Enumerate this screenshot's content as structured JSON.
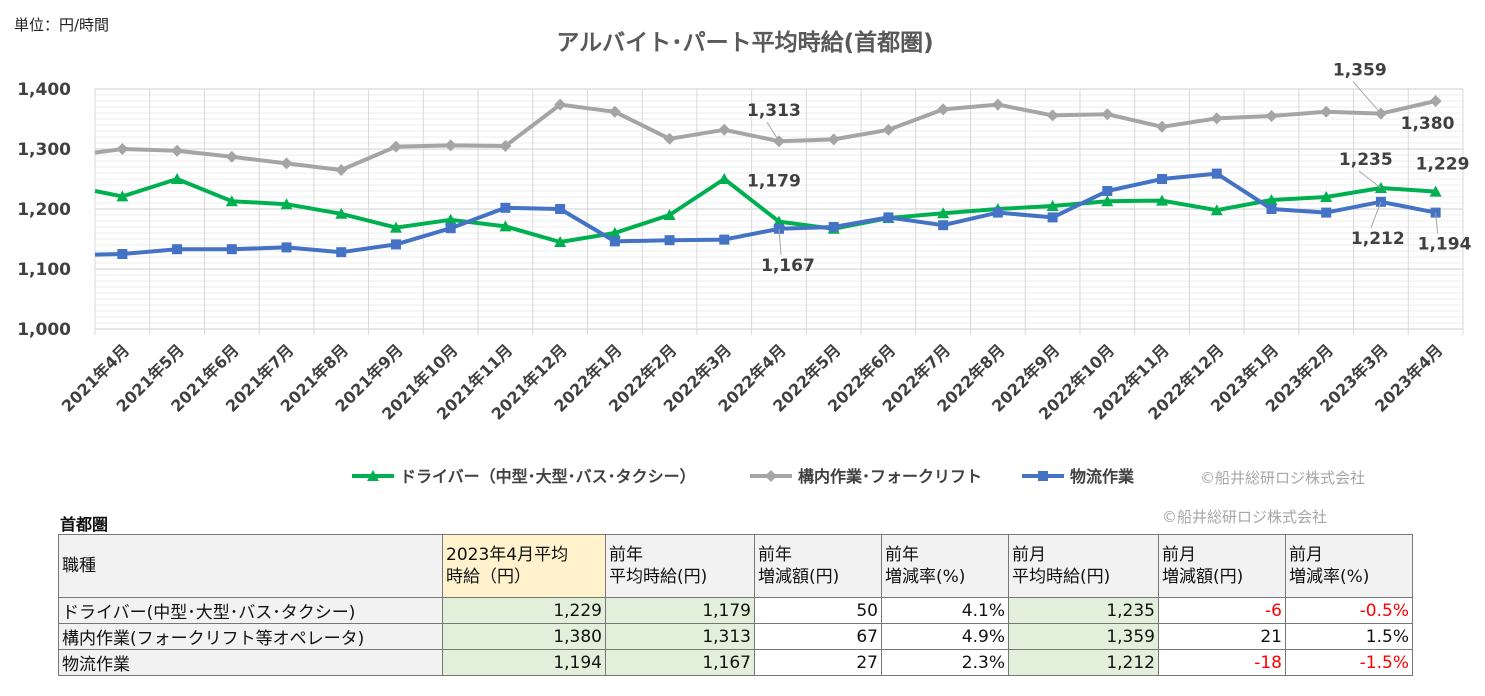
{
  "unit_label": "単位：円/時間",
  "copyright": "©船井総研ロジ株式会社",
  "chart_data": {
    "type": "line",
    "title": "アルバイト･パート平均時給(首都圏)",
    "categories": [
      "2021年4月",
      "2021年5月",
      "2021年6月",
      "2021年7月",
      "2021年8月",
      "2021年9月",
      "2021年10月",
      "2021年11月",
      "2021年12月",
      "2022年1月",
      "2022年2月",
      "2022年3月",
      "2022年4月",
      "2022年5月",
      "2022年6月",
      "2022年7月",
      "2022年8月",
      "2022年9月",
      "2022年10月",
      "2022年11月",
      "2022年12月",
      "2023年1月",
      "2023年2月",
      "2023年3月",
      "2023年4月"
    ],
    "ylim": [
      1000,
      1400
    ],
    "yticks": [
      1000,
      1100,
      1200,
      1300,
      1400
    ],
    "ytick_labels": [
      "1,000",
      "1,100",
      "1,200",
      "1,300",
      "1,400"
    ],
    "grid": true,
    "legend_position": "bottom",
    "series": [
      {
        "name": "ドライバー（中型･大型･バス･タクシー）",
        "color": "#00b050",
        "marker": "triangle",
        "start": 1230,
        "values": [
          1221,
          1250,
          1213,
          1208,
          1192,
          1169,
          1182,
          1171,
          1145,
          1160,
          1190,
          1250,
          1179,
          1167,
          1185,
          1193,
          1200,
          1205,
          1213,
          1214,
          1198,
          1215,
          1220,
          1235,
          1229
        ]
      },
      {
        "name": "構内作業･フォークリフト",
        "color": "#a5a5a5",
        "marker": "diamond",
        "start": 1294,
        "values": [
          1300,
          1297,
          1287,
          1276,
          1265,
          1304,
          1306,
          1305,
          1374,
          1362,
          1317,
          1332,
          1313,
          1316,
          1332,
          1366,
          1374,
          1356,
          1358,
          1337,
          1351,
          1355,
          1362,
          1359,
          1380
        ]
      },
      {
        "name": "物流作業",
        "color": "#4472c4",
        "marker": "square",
        "start": 1124,
        "values": [
          1125,
          1133,
          1133,
          1136,
          1128,
          1141,
          1168,
          1202,
          1200,
          1146,
          1148,
          1149,
          1167,
          1170,
          1186,
          1173,
          1194,
          1186,
          1230,
          1250,
          1259,
          1200,
          1194,
          1212,
          1194
        ]
      }
    ],
    "annotations": [
      {
        "text": "1,313",
        "series": 1,
        "index": 12
      },
      {
        "text": "1,179",
        "series": 0,
        "index": 12
      },
      {
        "text": "1,167",
        "series": 2,
        "index": 12
      },
      {
        "text": "1,359",
        "series": 1,
        "index": 23
      },
      {
        "text": "1,380",
        "series": 1,
        "index": 24
      },
      {
        "text": "1,235",
        "series": 0,
        "index": 23
      },
      {
        "text": "1,229",
        "series": 0,
        "index": 24
      },
      {
        "text": "1,212",
        "series": 2,
        "index": 23
      },
      {
        "text": "1,194",
        "series": 2,
        "index": 24
      }
    ]
  },
  "table": {
    "region": "首都圏",
    "headers": [
      [
        "職種"
      ],
      [
        "2023年4月平均",
        "時給（円）"
      ],
      [
        "前年",
        "平均時給(円)"
      ],
      [
        "前年",
        "増減額(円)"
      ],
      [
        "前年",
        "増減率(%)"
      ],
      [
        "前月",
        "平均時給(円)"
      ],
      [
        "前月",
        "増減額(円)"
      ],
      [
        "前月",
        "増減率(%)"
      ]
    ],
    "rows": [
      {
        "name": "ドライバー(中型･大型･バス･タクシー)",
        "cur": "1,229",
        "py": "1,179",
        "py_diff": "50",
        "py_rate": "4.1%",
        "pm": "1,235",
        "pm_diff": "-6",
        "pm_rate": "-0.5%"
      },
      {
        "name": "構内作業(フォークリフト等オペレータ)",
        "cur": "1,380",
        "py": "1,313",
        "py_diff": "67",
        "py_rate": "4.9%",
        "pm": "1,359",
        "pm_diff": "21",
        "pm_rate": "1.5%"
      },
      {
        "name": "物流作業",
        "cur": "1,194",
        "py": "1,167",
        "py_diff": "27",
        "py_rate": "2.3%",
        "pm": "1,212",
        "pm_diff": "-18",
        "pm_rate": "-1.5%"
      }
    ]
  }
}
